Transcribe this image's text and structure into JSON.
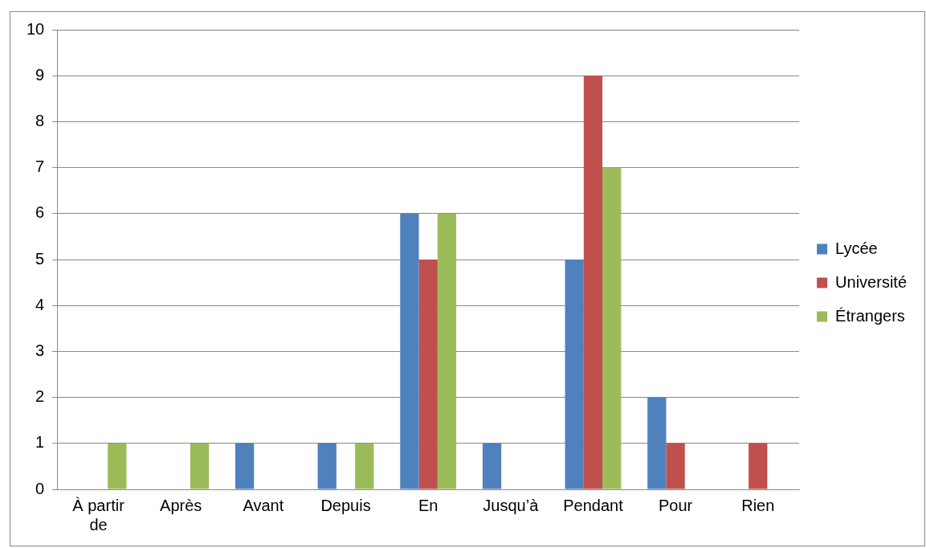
{
  "chart_data": {
    "type": "bar",
    "categories": [
      "À partir de",
      "Après",
      "Avant",
      "Depuis",
      "En",
      "Jusqu’à",
      "Pendant",
      "Pour",
      "Rien"
    ],
    "series": [
      {
        "name": "Lycée",
        "color": "#4f81bd",
        "values": [
          0,
          0,
          1,
          1,
          6,
          1,
          5,
          2,
          0
        ]
      },
      {
        "name": "Université",
        "color": "#c0504d",
        "values": [
          0,
          0,
          0,
          0,
          5,
          0,
          9,
          1,
          1
        ]
      },
      {
        "name": "Étrangers",
        "color": "#9bbb59",
        "values": [
          1,
          1,
          0,
          1,
          6,
          0,
          7,
          0,
          0
        ]
      }
    ],
    "ylim": [
      0,
      10
    ],
    "yticks": [
      0,
      1,
      2,
      3,
      4,
      5,
      6,
      7,
      8,
      9,
      10
    ],
    "grid": "y",
    "legend": "right"
  }
}
